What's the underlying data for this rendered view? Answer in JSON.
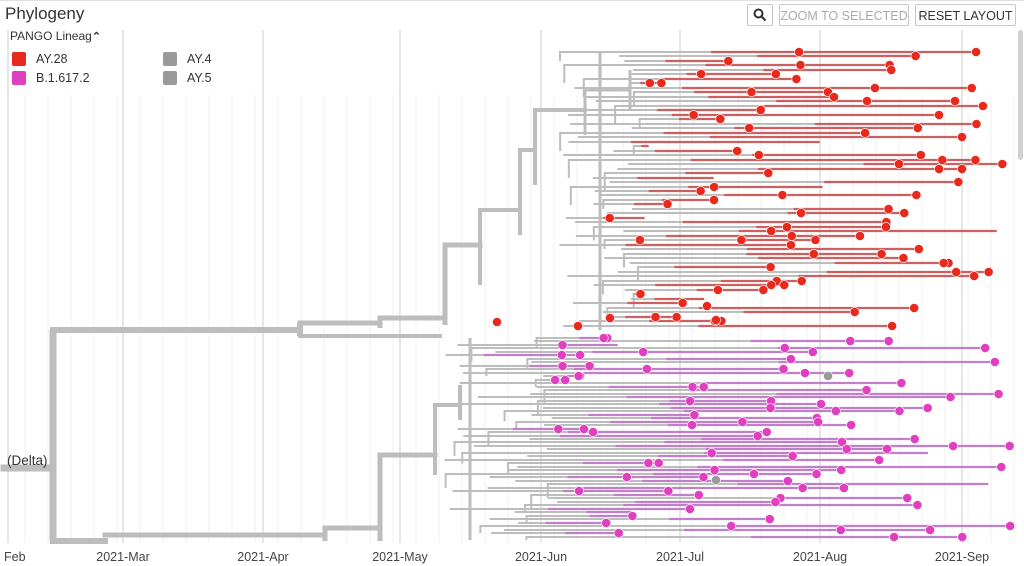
{
  "panel": {
    "title": "Phylogeny",
    "zoom_icon": "magnifier-icon",
    "zoom_selected_label": "ZOOM TO SELECTED",
    "reset_layout_label": "RESET LAYOUT"
  },
  "legend": {
    "title": "PANGO Lineag",
    "toggle_icon": "chevron-up-icon",
    "items": [
      {
        "label": "AY.28",
        "color": "#e8291c"
      },
      {
        "label": "B.1.617.2",
        "color": "#e040c0"
      },
      {
        "label": "AY.4",
        "color": "#9a9a9a"
      },
      {
        "label": "AY.5",
        "color": "#9a9a9a"
      }
    ]
  },
  "chart_data": {
    "type": "phylogenetic-tree",
    "root_label": "(Delta)",
    "x_axis": {
      "type": "date",
      "ticks": [
        "Feb",
        "2021-Mar",
        "2021-Apr",
        "2021-May",
        "2021-Jun",
        "2021-Jul",
        "2021-Aug",
        "2021-Sep"
      ]
    },
    "clades": [
      {
        "lineage": "AY.28",
        "color": "#e8291c",
        "branch_color": "#cc6060",
        "position": "upper"
      },
      {
        "lineage": "B.1.617.2",
        "color": "#e040c0",
        "branch_color": "#c080c8",
        "position": "lower"
      }
    ],
    "internal_branch_color": "#bdbdbd",
    "grid": true
  }
}
